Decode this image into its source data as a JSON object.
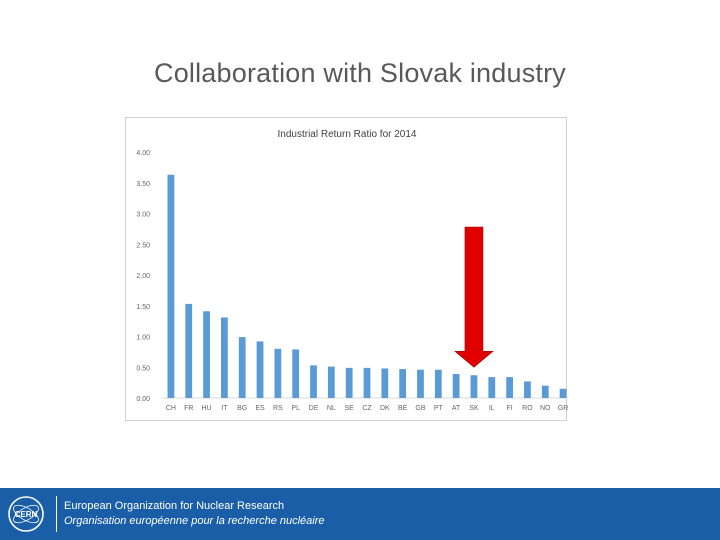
{
  "slide": {
    "title": "Collaboration with Slovak industry"
  },
  "footer": {
    "org_en": "European Organization for Nuclear Research",
    "org_fr": "Organisation européenne pour la recherche nucléaire",
    "logo_text": "CERN",
    "color": "#1a5ea8"
  },
  "chart_data": {
    "type": "bar",
    "title": "Industrial Return Ratio for 2014",
    "xlabel": "",
    "ylabel": "",
    "ylim": [
      0,
      4.0
    ],
    "yticks": [
      "0.00",
      "0.50",
      "1.00",
      "1.50",
      "2.00",
      "2.50",
      "3.00",
      "3.50",
      "4.00"
    ],
    "categories": [
      "CH",
      "FR",
      "HU",
      "IT",
      "BG",
      "ES",
      "RS",
      "PL",
      "DE",
      "NL",
      "SE",
      "CZ",
      "DK",
      "BE",
      "GB",
      "PT",
      "AT",
      "SK",
      "IL",
      "FI",
      "RO",
      "NO",
      "GR"
    ],
    "values": [
      3.63,
      1.53,
      1.41,
      1.31,
      0.99,
      0.92,
      0.8,
      0.79,
      0.53,
      0.51,
      0.49,
      0.49,
      0.48,
      0.47,
      0.46,
      0.46,
      0.39,
      0.37,
      0.34,
      0.34,
      0.27,
      0.2,
      0.15
    ],
    "bar_color": "#5b9bd5",
    "grid": false,
    "annotation": {
      "type": "arrow",
      "target_category": "SK",
      "color": "#e00000"
    }
  }
}
